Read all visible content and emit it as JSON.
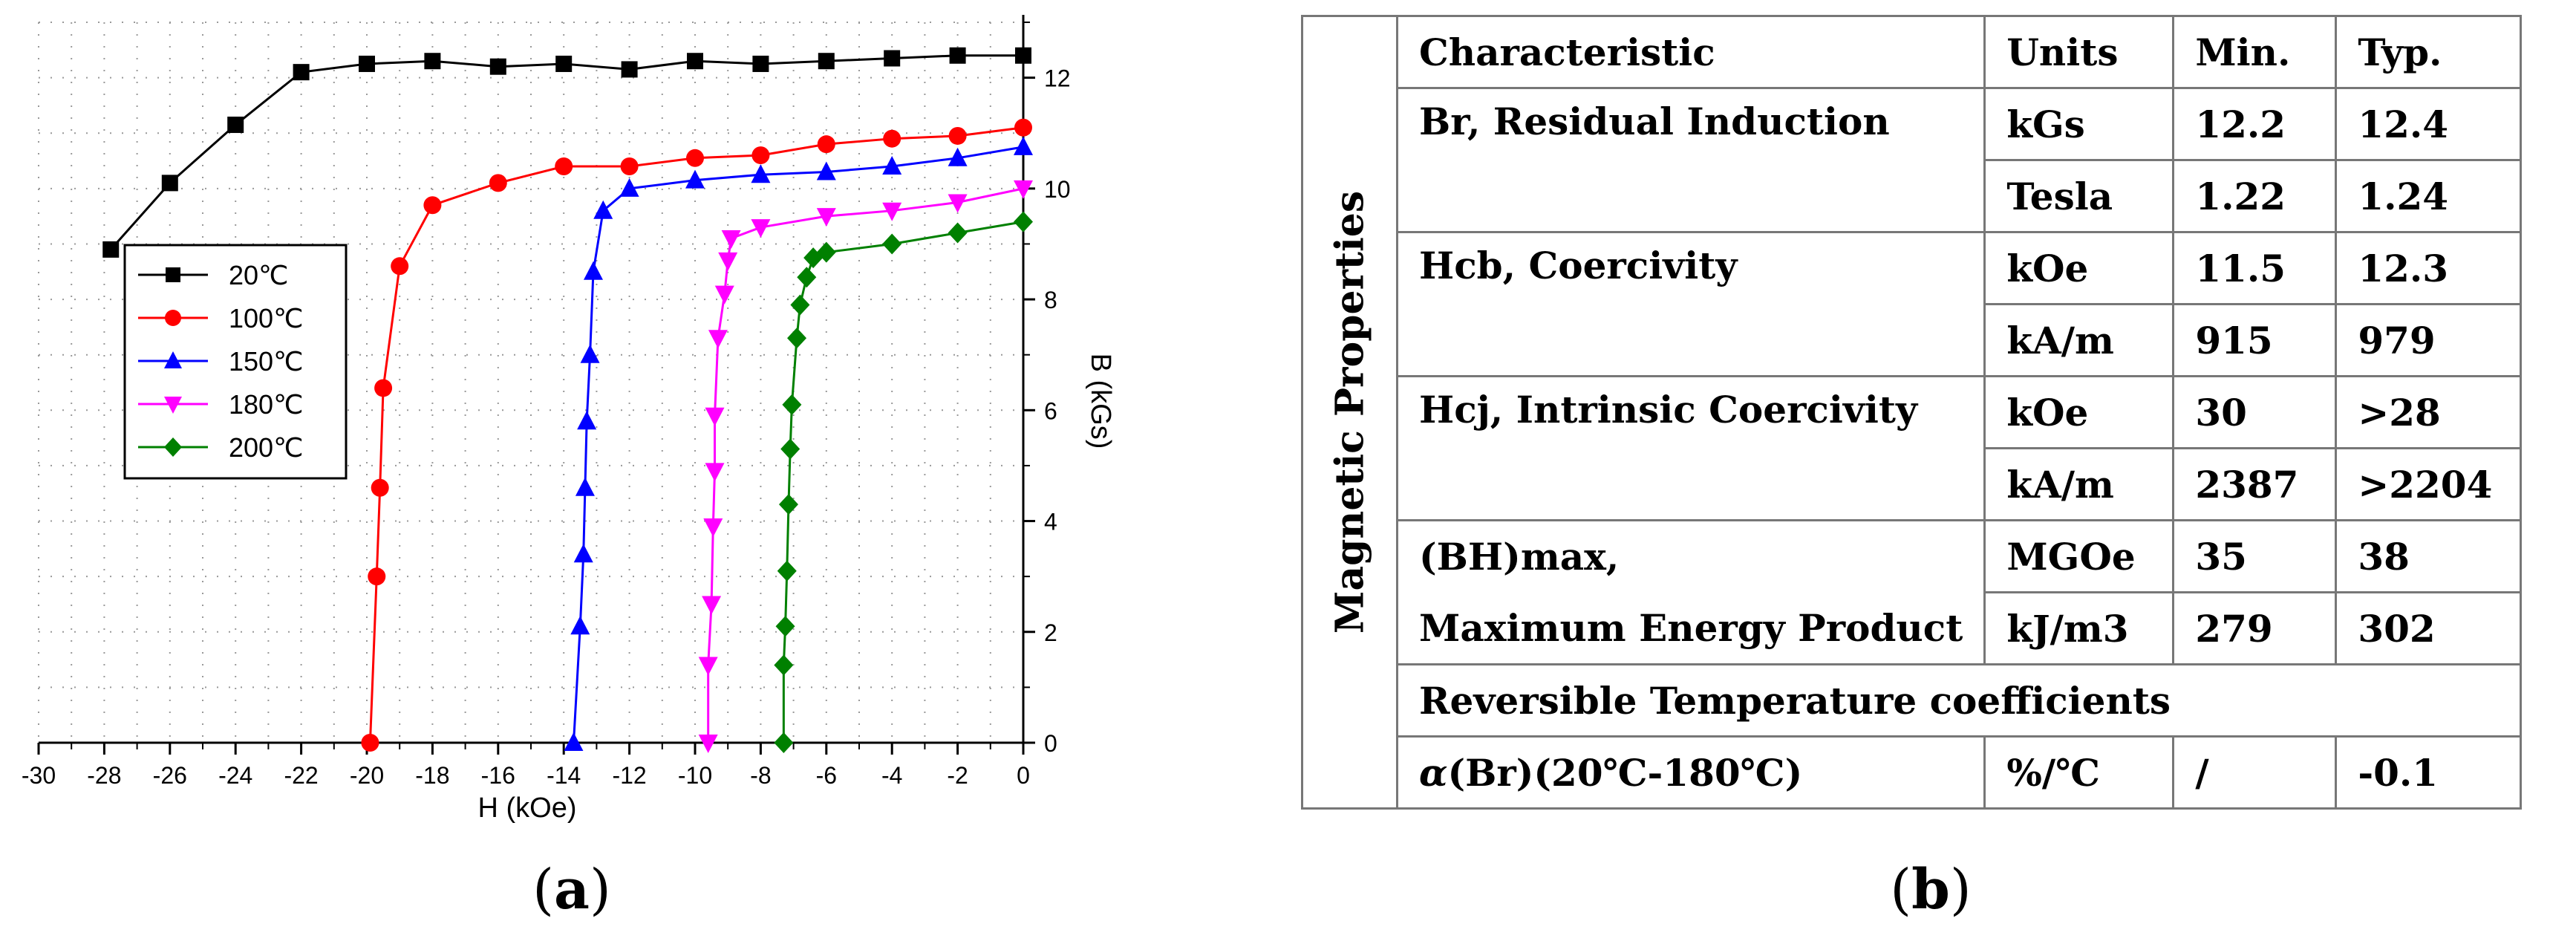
{
  "chart_data": {
    "type": "scatter",
    "xlabel": "H (kOe)",
    "ylabel": "B (kGs)",
    "xlim": [
      -30,
      0
    ],
    "ylim": [
      0,
      13
    ],
    "x_ticks": [
      "-30",
      "-28",
      "-26",
      "-24",
      "-22",
      "-20",
      "-18",
      "-16",
      "-14",
      "-12",
      "-10",
      "-8",
      "-6",
      "-4",
      "-2",
      "0"
    ],
    "y_ticks": [
      "0",
      "2",
      "4",
      "6",
      "8",
      "10",
      "12"
    ],
    "legend_position": "left",
    "series": [
      {
        "name": "20℃",
        "color": "#000000",
        "marker": "square",
        "x": [
          -27.8,
          -26,
          -24,
          -22,
          -20,
          -18,
          -16,
          -14,
          -12,
          -10,
          -8,
          -6,
          -4,
          -2,
          0
        ],
        "y": [
          8.9,
          10.1,
          11.15,
          12.1,
          12.25,
          12.3,
          12.2,
          12.25,
          12.15,
          12.3,
          12.25,
          12.3,
          12.35,
          12.4,
          12.4
        ]
      },
      {
        "name": "100℃",
        "color": "#ff0000",
        "marker": "circle",
        "x": [
          -19.9,
          -19.7,
          -19.6,
          -19.5,
          -19.0,
          -18.0,
          -16.0,
          -14.0,
          -12.0,
          -10.0,
          -8.0,
          -6.0,
          -4.0,
          -2.0,
          0
        ],
        "y": [
          0.0,
          3.0,
          4.6,
          6.4,
          8.6,
          9.7,
          10.1,
          10.4,
          10.4,
          10.55,
          10.6,
          10.8,
          10.9,
          10.95,
          11.1
        ]
      },
      {
        "name": "150℃",
        "color": "#0000ff",
        "marker": "triangle-up",
        "x": [
          -13.7,
          -13.5,
          -13.4,
          -13.35,
          -13.3,
          -13.2,
          -13.1,
          -12.8,
          -12.0,
          -10.0,
          -8.0,
          -6.0,
          -4.0,
          -2.0,
          0
        ],
        "y": [
          0.0,
          2.1,
          3.4,
          4.6,
          5.8,
          7.0,
          8.5,
          9.6,
          10.0,
          10.15,
          10.25,
          10.3,
          10.4,
          10.55,
          10.75
        ]
      },
      {
        "name": "180℃",
        "color": "#ff00ff",
        "marker": "triangle-down",
        "x": [
          -9.6,
          -9.6,
          -9.5,
          -9.45,
          -9.4,
          -9.4,
          -9.3,
          -9.1,
          -9.0,
          -8.9,
          -8.0,
          -6.0,
          -4.0,
          -2.0,
          0
        ],
        "y": [
          0.0,
          1.4,
          2.5,
          3.9,
          4.9,
          5.9,
          7.3,
          8.1,
          8.7,
          9.1,
          9.3,
          9.5,
          9.6,
          9.75,
          10.0
        ]
      },
      {
        "name": "200℃",
        "color": "#008000",
        "marker": "diamond",
        "x": [
          -7.3,
          -7.3,
          -7.25,
          -7.2,
          -7.15,
          -7.1,
          -7.05,
          -6.9,
          -6.8,
          -6.6,
          -6.4,
          -6.0,
          -4.0,
          -2.0,
          0
        ],
        "y": [
          0.0,
          1.4,
          2.1,
          3.1,
          4.3,
          5.3,
          6.1,
          7.3,
          7.9,
          8.4,
          8.75,
          8.85,
          9.0,
          9.2,
          9.4
        ]
      }
    ]
  },
  "captions": {
    "a": "a",
    "b": "b"
  },
  "table": {
    "side_label": "Magnetic Properties",
    "headers": [
      "Characteristic",
      "Units",
      "Min.",
      "Typ."
    ],
    "rows": {
      "br_label": "Br, Residual Induction",
      "br_kgs": [
        "kGs",
        "12.2",
        "12.4"
      ],
      "br_tesla": [
        "Tesla",
        "1.22",
        "1.24"
      ],
      "hcb_label": "Hcb, Coercivity",
      "hcb_koe": [
        "kOe",
        "11.5",
        "12.3"
      ],
      "hcb_kam": [
        "kA/m",
        "915",
        "979"
      ],
      "hcj_label": "Hcj, Intrinsic Coercivity",
      "hcj_koe": [
        "kOe",
        "30",
        ">28"
      ],
      "hcj_kam": [
        "kA/m",
        "2387",
        ">2204"
      ],
      "bh_label1": "(BH)max,",
      "bh_mgoe": [
        "MGOe",
        "35",
        "38"
      ],
      "bh_label2": "Maximum Energy Product",
      "bh_kj": [
        "kJ/m3",
        "279",
        "302"
      ],
      "rev_label": "Reversible Temperature coefficients",
      "alpha_symbol": "α",
      "alpha_label": "(Br)(20℃-180℃)",
      "alpha_vals": [
        "%/℃",
        "/",
        "-0.1"
      ]
    }
  }
}
